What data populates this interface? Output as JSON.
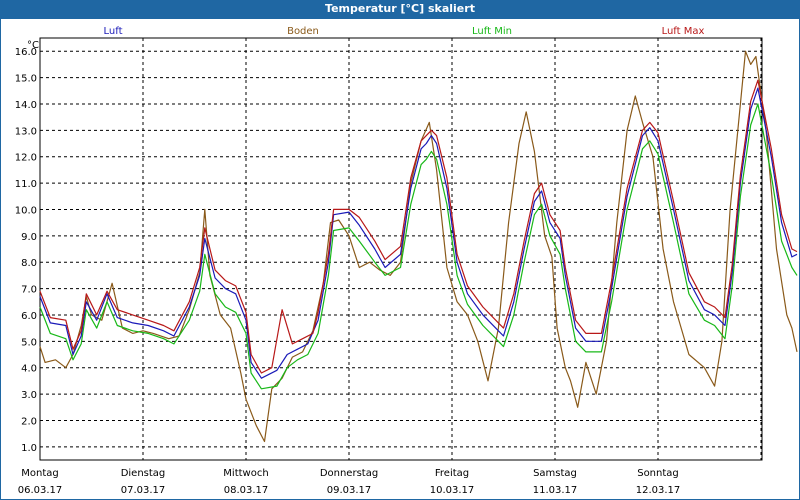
{
  "window": {
    "title": "Temperatur [°C] skaliert"
  },
  "chart_data": {
    "type": "line",
    "title": "Temperatur [°C] skaliert",
    "ylabel": "°C",
    "xlabel": "",
    "ylim": [
      0.5,
      16.5
    ],
    "xlim": [
      0,
      7
    ],
    "grid": true,
    "yticks": [
      "1.0",
      "2.0",
      "3.0",
      "4.0",
      "5.0",
      "6.0",
      "7.0",
      "8.0",
      "9.0",
      "10.0",
      "11.0",
      "12.0",
      "13.0",
      "14.0",
      "15.0",
      "16.0"
    ],
    "xticks": [
      {
        "day": "Montag",
        "date": "06.03.17"
      },
      {
        "day": "Dienstag",
        "date": "07.03.17"
      },
      {
        "day": "Mittwoch",
        "date": "08.03.17"
      },
      {
        "day": "Donnerstag",
        "date": "09.03.17"
      },
      {
        "day": "Freitag",
        "date": "10.03.17"
      },
      {
        "day": "Samstag",
        "date": "11.03.17"
      },
      {
        "day": "Sonntag",
        "date": "12.03.17"
      }
    ],
    "series": [
      {
        "name": "Luft",
        "color": "#1a1ab8",
        "points": [
          [
            0,
            6.7
          ],
          [
            0.1,
            5.7
          ],
          [
            0.25,
            5.6
          ],
          [
            0.32,
            4.5
          ],
          [
            0.4,
            5.2
          ],
          [
            0.45,
            6.5
          ],
          [
            0.55,
            5.8
          ],
          [
            0.65,
            6.8
          ],
          [
            0.75,
            5.9
          ],
          [
            0.9,
            5.7
          ],
          [
            1.05,
            5.6
          ],
          [
            1.2,
            5.4
          ],
          [
            1.3,
            5.2
          ],
          [
            1.45,
            6.3
          ],
          [
            1.55,
            7.5
          ],
          [
            1.6,
            8.9
          ],
          [
            1.7,
            7.4
          ],
          [
            1.8,
            7.0
          ],
          [
            1.9,
            6.8
          ],
          [
            2.0,
            5.8
          ],
          [
            2.05,
            4.2
          ],
          [
            2.15,
            3.6
          ],
          [
            2.3,
            3.9
          ],
          [
            2.4,
            4.5
          ],
          [
            2.5,
            4.7
          ],
          [
            2.6,
            4.9
          ],
          [
            2.7,
            5.8
          ],
          [
            2.8,
            8.0
          ],
          [
            2.85,
            9.8
          ],
          [
            3.0,
            9.9
          ],
          [
            3.1,
            9.4
          ],
          [
            3.25,
            8.5
          ],
          [
            3.35,
            7.8
          ],
          [
            3.5,
            8.3
          ],
          [
            3.6,
            10.8
          ],
          [
            3.7,
            12.3
          ],
          [
            3.75,
            12.5
          ],
          [
            3.8,
            12.8
          ],
          [
            3.85,
            12.5
          ],
          [
            3.95,
            10.8
          ],
          [
            4.05,
            8.0
          ],
          [
            4.15,
            6.8
          ],
          [
            4.3,
            6.0
          ],
          [
            4.45,
            5.4
          ],
          [
            4.5,
            5.2
          ],
          [
            4.6,
            6.5
          ],
          [
            4.7,
            8.5
          ],
          [
            4.8,
            10.3
          ],
          [
            4.87,
            10.7
          ],
          [
            4.95,
            9.5
          ],
          [
            5.05,
            8.9
          ],
          [
            5.1,
            7.5
          ],
          [
            5.2,
            5.5
          ],
          [
            5.3,
            5.0
          ],
          [
            5.45,
            5.0
          ],
          [
            5.55,
            7.0
          ],
          [
            5.7,
            10.5
          ],
          [
            5.85,
            12.8
          ],
          [
            5.92,
            13.1
          ],
          [
            6.0,
            12.6
          ],
          [
            6.15,
            10.0
          ],
          [
            6.3,
            7.3
          ],
          [
            6.45,
            6.2
          ],
          [
            6.55,
            6.0
          ],
          [
            6.65,
            5.6
          ],
          [
            6.72,
            7.6
          ],
          [
            6.8,
            11.0
          ],
          [
            6.9,
            13.8
          ],
          [
            6.97,
            14.6
          ],
          [
            7.1,
            12.0
          ],
          [
            7.2,
            9.5
          ],
          [
            7.3,
            8.2
          ],
          [
            7.35,
            8.3
          ]
        ]
      },
      {
        "name": "Boden",
        "color": "#8a5a1a",
        "points": [
          [
            0,
            4.8
          ],
          [
            0.05,
            4.2
          ],
          [
            0.15,
            4.3
          ],
          [
            0.25,
            4.0
          ],
          [
            0.32,
            4.5
          ],
          [
            0.4,
            5.6
          ],
          [
            0.45,
            6.7
          ],
          [
            0.5,
            6.0
          ],
          [
            0.6,
            5.8
          ],
          [
            0.7,
            7.2
          ],
          [
            0.8,
            5.5
          ],
          [
            0.9,
            5.3
          ],
          [
            1.0,
            5.4
          ],
          [
            1.1,
            5.3
          ],
          [
            1.25,
            5.1
          ],
          [
            1.35,
            5.2
          ],
          [
            1.45,
            6.2
          ],
          [
            1.55,
            7.6
          ],
          [
            1.6,
            10.0
          ],
          [
            1.65,
            7.5
          ],
          [
            1.75,
            6.0
          ],
          [
            1.85,
            5.5
          ],
          [
            1.95,
            3.8
          ],
          [
            2.0,
            2.8
          ],
          [
            2.1,
            1.8
          ],
          [
            2.18,
            1.2
          ],
          [
            2.25,
            3.2
          ],
          [
            2.35,
            3.6
          ],
          [
            2.45,
            4.4
          ],
          [
            2.55,
            4.6
          ],
          [
            2.65,
            5.4
          ],
          [
            2.75,
            7.2
          ],
          [
            2.82,
            9.5
          ],
          [
            2.9,
            9.6
          ],
          [
            3.0,
            9.0
          ],
          [
            3.1,
            7.8
          ],
          [
            3.2,
            8.0
          ],
          [
            3.3,
            7.7
          ],
          [
            3.4,
            7.5
          ],
          [
            3.5,
            8.0
          ],
          [
            3.6,
            11.0
          ],
          [
            3.7,
            12.6
          ],
          [
            3.78,
            13.3
          ],
          [
            3.85,
            11.5
          ],
          [
            3.95,
            7.8
          ],
          [
            4.05,
            6.5
          ],
          [
            4.15,
            6.0
          ],
          [
            4.25,
            5.0
          ],
          [
            4.35,
            3.5
          ],
          [
            4.45,
            5.5
          ],
          [
            4.55,
            9.5
          ],
          [
            4.65,
            12.5
          ],
          [
            4.72,
            13.7
          ],
          [
            4.8,
            12.2
          ],
          [
            4.9,
            9.0
          ],
          [
            4.97,
            8.2
          ],
          [
            5.02,
            5.5
          ],
          [
            5.1,
            4.0
          ],
          [
            5.15,
            3.5
          ],
          [
            5.22,
            2.5
          ],
          [
            5.3,
            4.2
          ],
          [
            5.4,
            3.0
          ],
          [
            5.5,
            5.0
          ],
          [
            5.6,
            9.5
          ],
          [
            5.7,
            13.0
          ],
          [
            5.78,
            14.3
          ],
          [
            5.85,
            13.3
          ],
          [
            5.95,
            12.0
          ],
          [
            6.05,
            8.5
          ],
          [
            6.15,
            6.5
          ],
          [
            6.3,
            4.5
          ],
          [
            6.45,
            4.0
          ],
          [
            6.55,
            3.3
          ],
          [
            6.62,
            5.0
          ],
          [
            6.7,
            10.0
          ],
          [
            6.8,
            14.0
          ],
          [
            6.85,
            16.0
          ],
          [
            6.9,
            15.5
          ],
          [
            6.95,
            15.8
          ],
          [
            7.05,
            13.0
          ],
          [
            7.15,
            8.5
          ],
          [
            7.25,
            6.0
          ],
          [
            7.3,
            5.5
          ],
          [
            7.35,
            4.6
          ]
        ]
      },
      {
        "name": "Luft Min",
        "color": "#18b818",
        "points": [
          [
            0,
            6.3
          ],
          [
            0.1,
            5.3
          ],
          [
            0.25,
            5.1
          ],
          [
            0.32,
            4.3
          ],
          [
            0.4,
            4.9
          ],
          [
            0.45,
            6.2
          ],
          [
            0.55,
            5.5
          ],
          [
            0.65,
            6.5
          ],
          [
            0.75,
            5.6
          ],
          [
            0.9,
            5.4
          ],
          [
            1.05,
            5.3
          ],
          [
            1.2,
            5.1
          ],
          [
            1.3,
            4.9
          ],
          [
            1.45,
            5.8
          ],
          [
            1.55,
            6.9
          ],
          [
            1.6,
            8.3
          ],
          [
            1.7,
            6.8
          ],
          [
            1.8,
            6.3
          ],
          [
            1.9,
            6.1
          ],
          [
            2.0,
            5.3
          ],
          [
            2.05,
            3.8
          ],
          [
            2.15,
            3.2
          ],
          [
            2.3,
            3.3
          ],
          [
            2.4,
            4.0
          ],
          [
            2.5,
            4.3
          ],
          [
            2.6,
            4.5
          ],
          [
            2.7,
            5.3
          ],
          [
            2.8,
            7.5
          ],
          [
            2.85,
            9.2
          ],
          [
            3.0,
            9.3
          ],
          [
            3.1,
            8.8
          ],
          [
            3.25,
            8.0
          ],
          [
            3.35,
            7.5
          ],
          [
            3.5,
            7.8
          ],
          [
            3.6,
            10.2
          ],
          [
            3.7,
            11.7
          ],
          [
            3.75,
            11.9
          ],
          [
            3.8,
            12.2
          ],
          [
            3.85,
            11.9
          ],
          [
            3.95,
            10.2
          ],
          [
            4.05,
            7.5
          ],
          [
            4.15,
            6.4
          ],
          [
            4.3,
            5.6
          ],
          [
            4.45,
            5.0
          ],
          [
            4.5,
            4.8
          ],
          [
            4.6,
            6.0
          ],
          [
            4.7,
            8.0
          ],
          [
            4.8,
            9.8
          ],
          [
            4.87,
            10.2
          ],
          [
            4.95,
            9.0
          ],
          [
            5.05,
            8.3
          ],
          [
            5.1,
            7.0
          ],
          [
            5.2,
            5.0
          ],
          [
            5.3,
            4.6
          ],
          [
            5.45,
            4.6
          ],
          [
            5.55,
            6.5
          ],
          [
            5.7,
            10.0
          ],
          [
            5.85,
            12.3
          ],
          [
            5.92,
            12.6
          ],
          [
            6.0,
            12.1
          ],
          [
            6.15,
            9.5
          ],
          [
            6.3,
            6.8
          ],
          [
            6.45,
            5.8
          ],
          [
            6.55,
            5.6
          ],
          [
            6.65,
            5.1
          ],
          [
            6.72,
            7.1
          ],
          [
            6.8,
            10.5
          ],
          [
            6.9,
            13.2
          ],
          [
            6.97,
            14.0
          ],
          [
            7.1,
            11.3
          ],
          [
            7.2,
            8.8
          ],
          [
            7.3,
            7.8
          ],
          [
            7.35,
            7.5
          ]
        ]
      },
      {
        "name": "Luft Max",
        "color": "#b81818",
        "points": [
          [
            0,
            6.9
          ],
          [
            0.1,
            5.9
          ],
          [
            0.25,
            5.8
          ],
          [
            0.32,
            4.7
          ],
          [
            0.4,
            5.4
          ],
          [
            0.45,
            6.8
          ],
          [
            0.55,
            6.0
          ],
          [
            0.65,
            6.9
          ],
          [
            0.75,
            6.2
          ],
          [
            0.9,
            6.0
          ],
          [
            1.05,
            5.8
          ],
          [
            1.2,
            5.6
          ],
          [
            1.3,
            5.4
          ],
          [
            1.45,
            6.5
          ],
          [
            1.55,
            7.8
          ],
          [
            1.6,
            9.3
          ],
          [
            1.7,
            7.7
          ],
          [
            1.8,
            7.3
          ],
          [
            1.9,
            7.1
          ],
          [
            2.0,
            6.1
          ],
          [
            2.05,
            4.5
          ],
          [
            2.15,
            3.8
          ],
          [
            2.25,
            4.0
          ],
          [
            2.35,
            6.2
          ],
          [
            2.45,
            4.9
          ],
          [
            2.55,
            5.1
          ],
          [
            2.65,
            5.3
          ],
          [
            2.7,
            6.1
          ],
          [
            2.8,
            8.3
          ],
          [
            2.85,
            10.0
          ],
          [
            3.0,
            10.0
          ],
          [
            3.1,
            9.7
          ],
          [
            3.25,
            8.8
          ],
          [
            3.35,
            8.1
          ],
          [
            3.5,
            8.6
          ],
          [
            3.6,
            11.2
          ],
          [
            3.7,
            12.6
          ],
          [
            3.75,
            12.8
          ],
          [
            3.8,
            13.0
          ],
          [
            3.85,
            12.8
          ],
          [
            3.95,
            11.2
          ],
          [
            4.05,
            8.3
          ],
          [
            4.15,
            7.1
          ],
          [
            4.3,
            6.3
          ],
          [
            4.45,
            5.7
          ],
          [
            4.5,
            5.5
          ],
          [
            4.6,
            6.8
          ],
          [
            4.7,
            8.8
          ],
          [
            4.8,
            10.6
          ],
          [
            4.87,
            11.0
          ],
          [
            4.95,
            9.8
          ],
          [
            5.05,
            9.2
          ],
          [
            5.1,
            7.8
          ],
          [
            5.2,
            5.8
          ],
          [
            5.3,
            5.3
          ],
          [
            5.45,
            5.3
          ],
          [
            5.55,
            7.3
          ],
          [
            5.7,
            10.8
          ],
          [
            5.85,
            13.0
          ],
          [
            5.92,
            13.3
          ],
          [
            6.0,
            12.9
          ],
          [
            6.15,
            10.3
          ],
          [
            6.3,
            7.6
          ],
          [
            6.45,
            6.5
          ],
          [
            6.55,
            6.3
          ],
          [
            6.65,
            5.9
          ],
          [
            6.72,
            7.9
          ],
          [
            6.8,
            11.3
          ],
          [
            6.9,
            14.1
          ],
          [
            6.97,
            14.9
          ],
          [
            7.1,
            12.3
          ],
          [
            7.2,
            9.8
          ],
          [
            7.3,
            8.5
          ],
          [
            7.35,
            8.4
          ]
        ]
      }
    ]
  }
}
